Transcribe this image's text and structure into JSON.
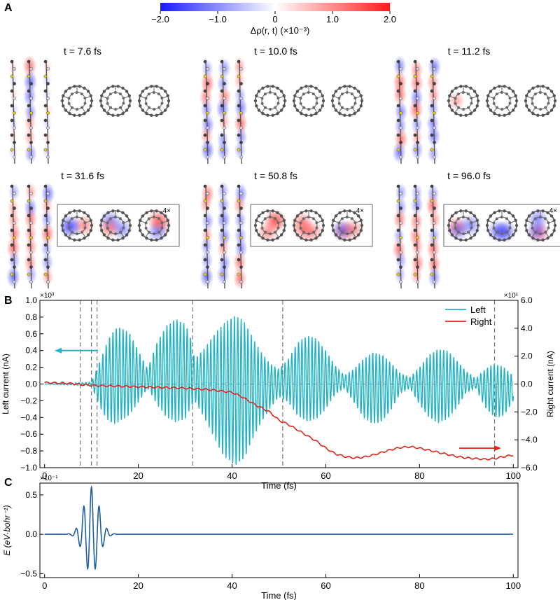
{
  "panel_labels": {
    "a": "A",
    "b": "B",
    "c": "C"
  },
  "colorbar": {
    "ticks": [
      "−2.0",
      "−1.0",
      "0",
      "1.0",
      "2.0"
    ],
    "label": "Δρ(r, t)  (×10⁻³)",
    "range": [
      -2.0,
      2.0
    ],
    "colors": {
      "negative": "#1a1aff",
      "zero": "#ffffff",
      "positive": "#ff1a1a"
    }
  },
  "snapshots": [
    {
      "title": "t = 7.6 fs",
      "row": 0,
      "col": 0,
      "magnified": false,
      "zoom_label": ""
    },
    {
      "title": "t = 10.0 fs",
      "row": 0,
      "col": 1,
      "magnified": false,
      "zoom_label": ""
    },
    {
      "title": "t = 11.2 fs",
      "row": 0,
      "col": 2,
      "magnified": false,
      "zoom_label": ""
    },
    {
      "title": "t = 31.6 fs",
      "row": 1,
      "col": 0,
      "magnified": true,
      "zoom_label": "4×"
    },
    {
      "title": "t = 50.8 fs",
      "row": 1,
      "col": 1,
      "magnified": true,
      "zoom_label": "4×"
    },
    {
      "title": "t = 96.0 fs",
      "row": 1,
      "col": 2,
      "magnified": true,
      "zoom_label": "4×"
    }
  ],
  "chart_data": [
    {
      "panel": "B",
      "type": "line",
      "xlabel": "Time (fs)",
      "ylabel_left": "Left current (nA)",
      "ylabel_right": "Right current (nA)",
      "left_scale_label": "×10³",
      "right_scale_label": "×10¹",
      "xlim": [
        -1,
        101
      ],
      "ylim_left": [
        -1.0,
        1.0
      ],
      "ylim_right": [
        -6.0,
        6.0
      ],
      "x_ticks": [
        "0",
        "20",
        "40",
        "60",
        "80",
        "100"
      ],
      "y_ticks_left": [
        "1.0",
        "0.8",
        "0.6",
        "0.4",
        "0.2",
        "0.0",
        "−0.2",
        "−0.4",
        "−0.6",
        "−0.8",
        "−1.0"
      ],
      "y_ticks_right": [
        "6.0",
        "4.0",
        "2.0",
        "0.0",
        "−2.0",
        "−4.0",
        "−6.0"
      ],
      "snapshot_times": [
        7.6,
        10.0,
        11.2,
        31.6,
        50.8,
        96.0
      ],
      "legend_position": "top-right",
      "series": [
        {
          "name": "Left",
          "color": "#1fb3c4",
          "axis": "left",
          "x": [
            0,
            10,
            12,
            13,
            14,
            15,
            16,
            18,
            20,
            22,
            24,
            26,
            28,
            30,
            31,
            32,
            34,
            36,
            38,
            40,
            41,
            42,
            43,
            44,
            46,
            48,
            50,
            52,
            54,
            56,
            58,
            60,
            62,
            64,
            66,
            68,
            70,
            72,
            74,
            76,
            78,
            80,
            82,
            84,
            86,
            88,
            90,
            92,
            94,
            96,
            98,
            100
          ],
          "envelope_upper": [
            0.0,
            0.02,
            0.3,
            0.45,
            0.58,
            0.66,
            0.68,
            0.62,
            0.4,
            0.18,
            0.5,
            0.7,
            0.78,
            0.72,
            0.6,
            0.3,
            0.42,
            0.58,
            0.72,
            0.8,
            0.82,
            0.78,
            0.72,
            0.6,
            0.4,
            0.25,
            0.18,
            0.3,
            0.5,
            0.58,
            0.55,
            0.4,
            0.22,
            0.1,
            0.18,
            0.3,
            0.38,
            0.35,
            0.25,
            0.12,
            0.08,
            0.2,
            0.35,
            0.42,
            0.4,
            0.28,
            0.15,
            0.06,
            0.18,
            0.24,
            0.2,
            0.1
          ],
          "envelope_lower": [
            0.0,
            -0.02,
            -0.3,
            -0.4,
            -0.46,
            -0.48,
            -0.45,
            -0.38,
            -0.22,
            -0.05,
            -0.25,
            -0.4,
            -0.46,
            -0.42,
            -0.3,
            -0.2,
            -0.4,
            -0.62,
            -0.85,
            -0.95,
            -0.97,
            -0.92,
            -0.85,
            -0.7,
            -0.48,
            -0.3,
            -0.15,
            -0.22,
            -0.38,
            -0.45,
            -0.42,
            -0.3,
            -0.12,
            -0.05,
            -0.22,
            -0.4,
            -0.48,
            -0.45,
            -0.3,
            -0.1,
            -0.05,
            -0.25,
            -0.4,
            -0.47,
            -0.42,
            -0.28,
            -0.1,
            -0.05,
            -0.28,
            -0.4,
            -0.38,
            -0.2
          ]
        },
        {
          "name": "Right",
          "color": "#e2231a",
          "axis": "right",
          "x": [
            0,
            5,
            10,
            15,
            20,
            25,
            30,
            35,
            40,
            42,
            45,
            48,
            50,
            52,
            55,
            58,
            60,
            62,
            64,
            66,
            68,
            70,
            72,
            74,
            76,
            78,
            80,
            82,
            84,
            86,
            88,
            90,
            92,
            94,
            96,
            98,
            100
          ],
          "y": [
            0.1,
            0.05,
            -0.1,
            -0.15,
            -0.2,
            -0.25,
            -0.3,
            -0.4,
            -0.6,
            -0.9,
            -1.5,
            -2.0,
            -2.6,
            -2.9,
            -3.5,
            -4.1,
            -4.6,
            -5.0,
            -5.2,
            -5.3,
            -5.25,
            -5.1,
            -4.9,
            -4.7,
            -4.55,
            -4.5,
            -4.6,
            -4.75,
            -4.9,
            -5.05,
            -5.2,
            -5.3,
            -5.35,
            -5.4,
            -5.35,
            -5.2,
            -5.1
          ]
        }
      ]
    },
    {
      "panel": "C",
      "type": "line",
      "xlabel": "Time (fs)",
      "ylabel": "E (eV·bohr⁻¹)",
      "scale_label": "×10⁻¹",
      "xlim": [
        -1,
        101
      ],
      "ylim": [
        -0.55,
        0.65
      ],
      "x_ticks": [
        "0",
        "20",
        "40",
        "60",
        "80",
        "100"
      ],
      "y_ticks": [
        "0.5",
        "0.0",
        "−0.5"
      ],
      "series": [
        {
          "color": "#1f5f9f",
          "pulse_center": 10.0,
          "pulse_width": 1.6,
          "carrier_period": 1.65,
          "peak_value": 0.6,
          "min_value": -0.5
        }
      ]
    }
  ]
}
